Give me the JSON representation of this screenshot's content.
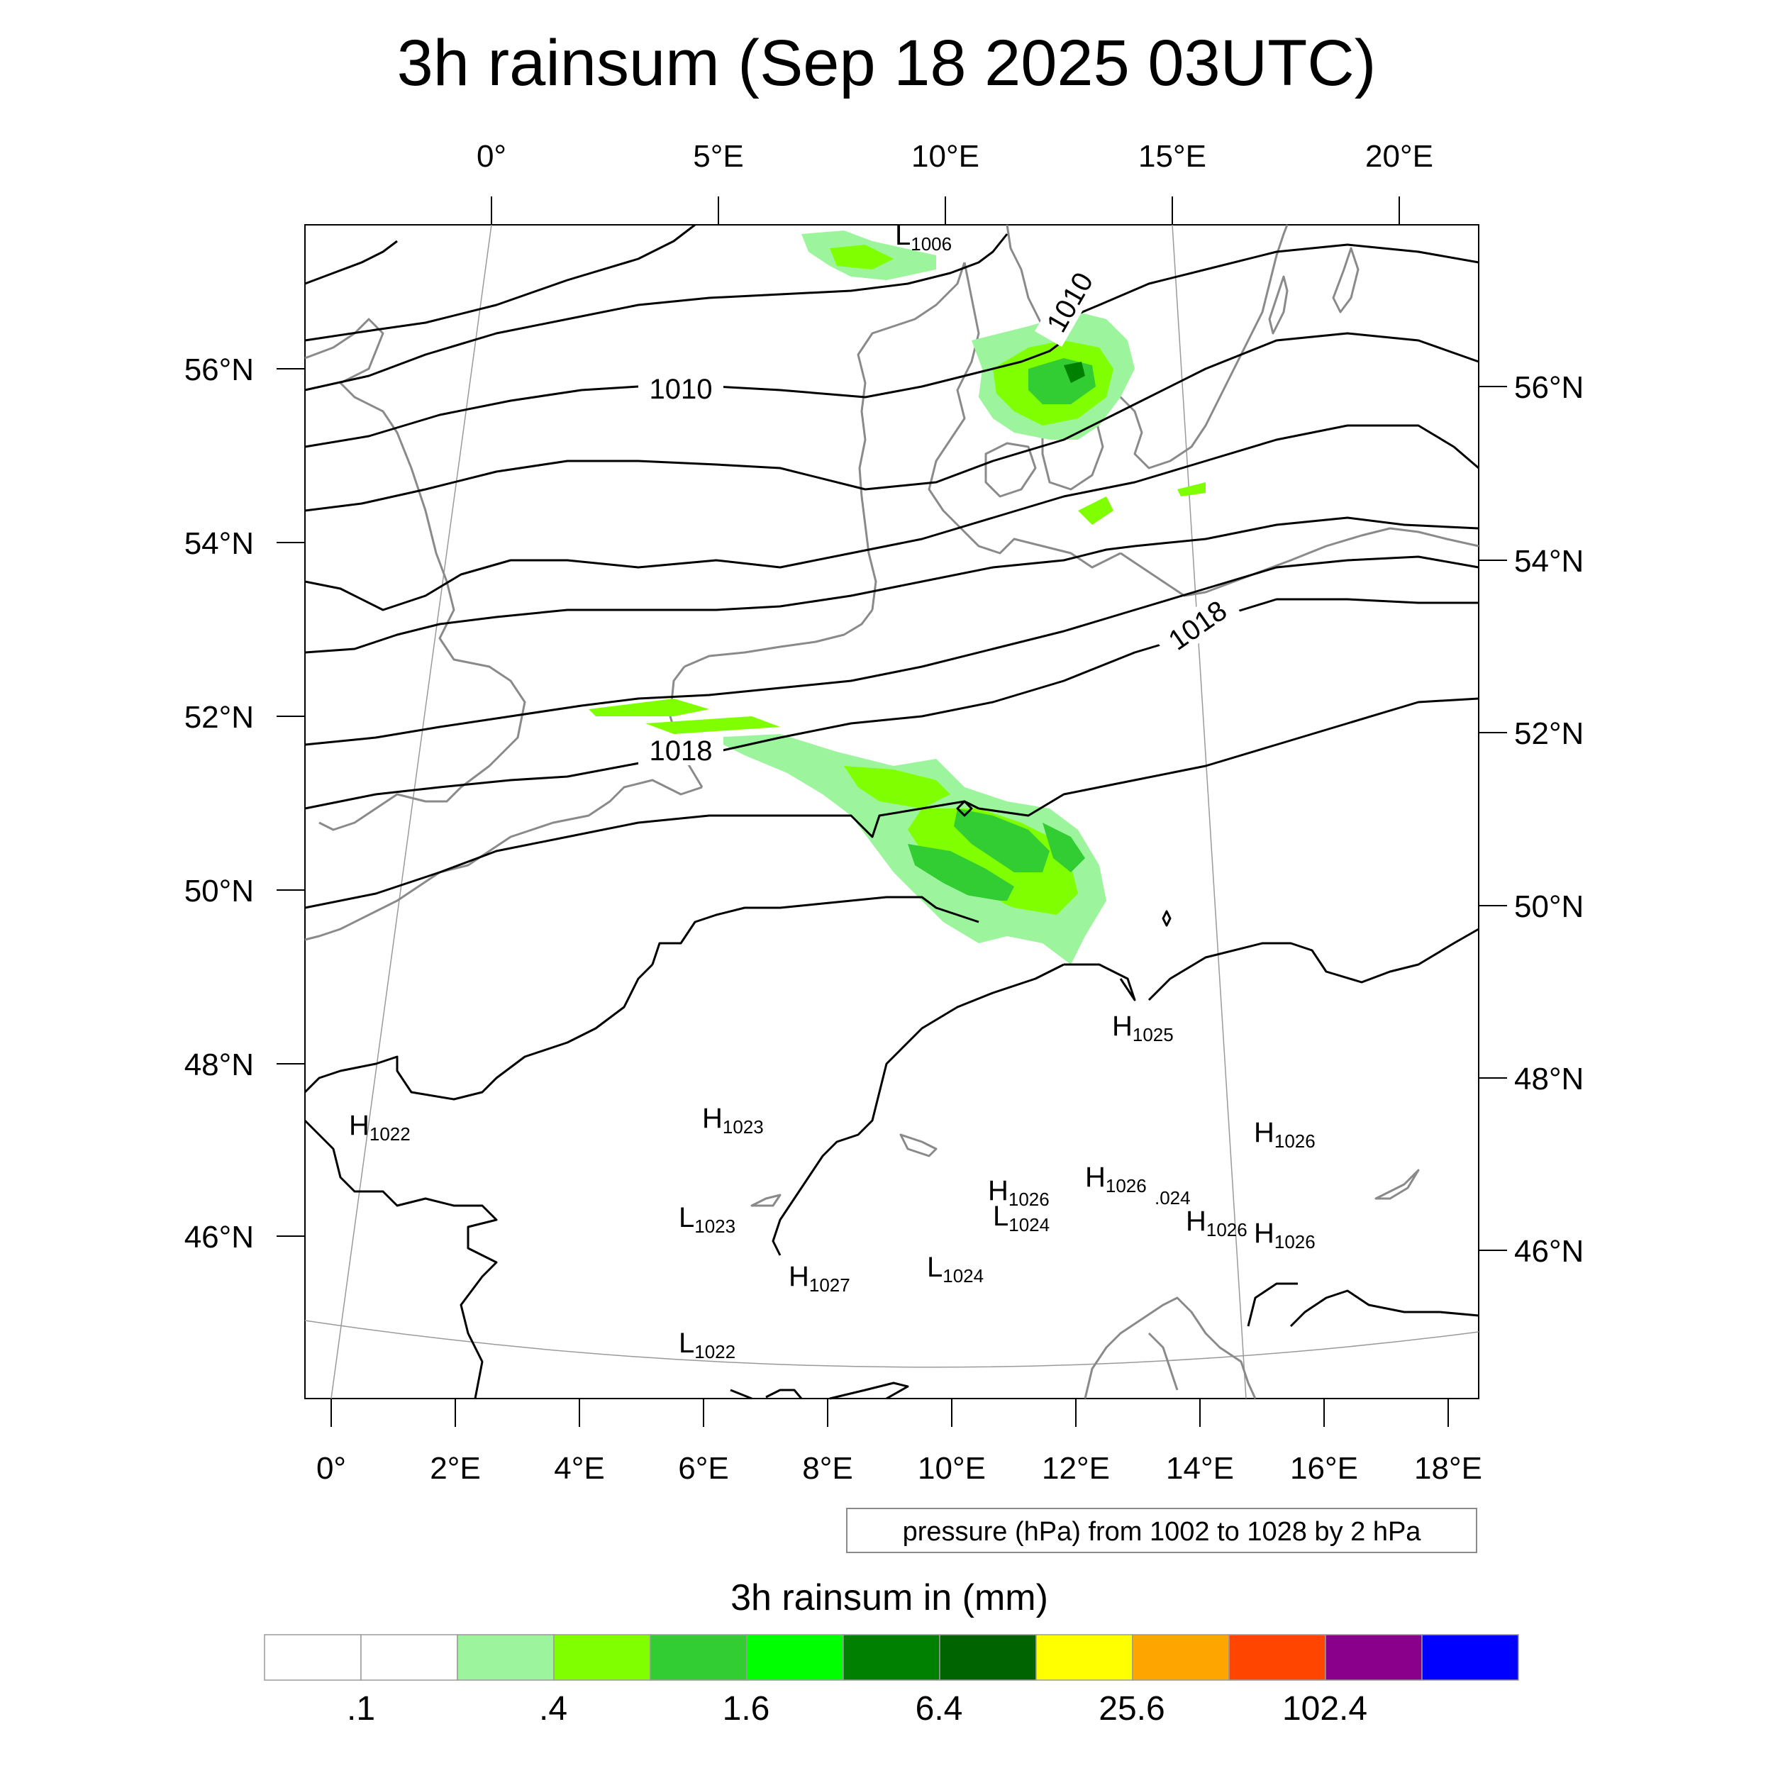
{
  "title": "3h rainsum (Sep 18 2025 03UTC)",
  "top_lon_labels": [
    "0°",
    "5°E",
    "10°E",
    "15°E",
    "20°E"
  ],
  "bottom_lon_labels": [
    "0°",
    "2°E",
    "4°E",
    "6°E",
    "8°E",
    "10°E",
    "12°E",
    "14°E",
    "16°E",
    "18°E"
  ],
  "left_lat_labels": [
    "56°N",
    "54°N",
    "52°N",
    "50°N",
    "48°N",
    "46°N"
  ],
  "right_lat_labels": [
    "56°N",
    "54°N",
    "52°N",
    "50°N",
    "48°N",
    "46°N"
  ],
  "isobar_labels": [
    "1010",
    "1010",
    "1018",
    "1018"
  ],
  "pressure_centers": [
    {
      "letter": "L",
      "value": "1006"
    },
    {
      "letter": "H",
      "value": "1025"
    },
    {
      "letter": "H",
      "value": "1022"
    },
    {
      "letter": "H",
      "value": "1023"
    },
    {
      "letter": "H",
      "value": "1026"
    },
    {
      "letter": "H",
      "value": "1026"
    },
    {
      "letter": "H",
      "value": "1026"
    },
    {
      "letter": "L",
      "value": "1023"
    },
    {
      "letter": "L",
      "value": "1024"
    },
    {
      "letter": "H",
      "value": "1026"
    },
    {
      "letter": "H",
      "value": "1026"
    },
    {
      "letter": "H",
      "value": "1027"
    },
    {
      "letter": "L",
      "value": "1024"
    },
    {
      "letter": "L",
      "value": "1022"
    }
  ],
  "fragment_label": ".024",
  "info_box": "pressure (hPa) from 1002 to 1028 by 2 hPa",
  "colorbar": {
    "title": "3h rainsum in (mm)",
    "colors": [
      "#ffffff",
      "#ffffff",
      "#9cf59c",
      "#80ff00",
      "#32cd32",
      "#00ff00",
      "#008000",
      "#006400",
      "#ffff00",
      "#ffa500",
      "#ff4500",
      "#8b008b",
      "#0000ff"
    ],
    "labels": [
      ".1",
      ".4",
      "1.6",
      "6.4",
      "25.6",
      "102.4"
    ]
  }
}
